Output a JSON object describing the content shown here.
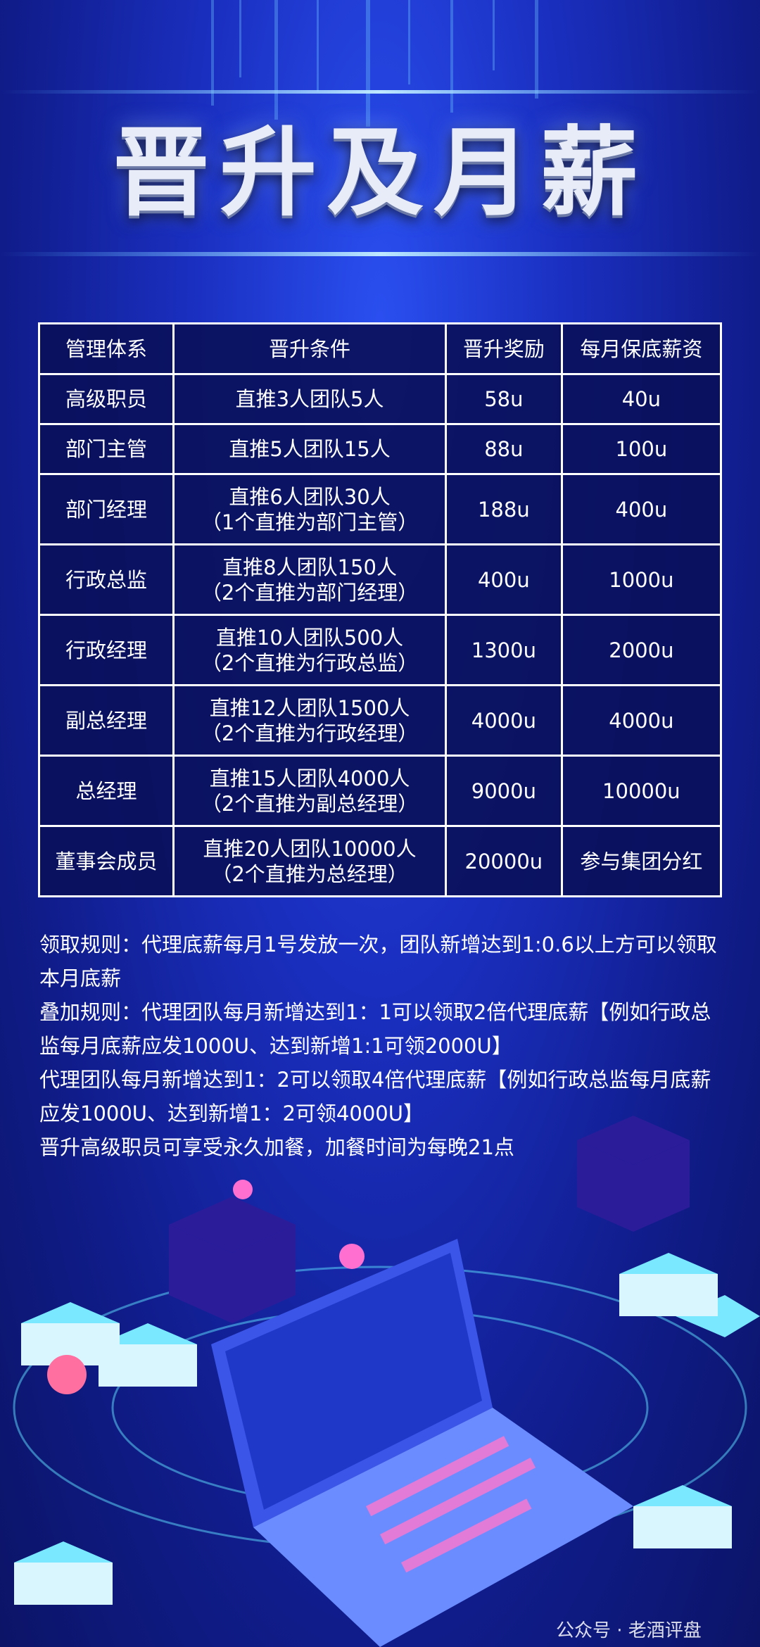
{
  "header": {
    "title": "晋升及月薪"
  },
  "table": {
    "header": [
      "管理体系",
      "晋升条件",
      "晋升奖励",
      "每月保底薪资"
    ],
    "rows": [
      [
        "高级职员",
        "直推3人团队5人",
        "58u",
        "40u"
      ],
      [
        "部门主管",
        "直推5人团队15人",
        "88u",
        "100u"
      ],
      [
        "部门经理",
        [
          "直推6人团队30人",
          "（1个直推为部门主管）"
        ],
        "188u",
        "400u"
      ],
      [
        "行政总监",
        [
          "直推8人团队150人",
          "（2个直推为部门经理）"
        ],
        "400u",
        "1000u"
      ],
      [
        "行政经理",
        [
          "直推10人团队500人",
          "（2个直推为行政总监）"
        ],
        "1300u",
        "2000u"
      ],
      [
        "副总经理",
        [
          "直推12人团队1500人",
          "（2个直推为行政经理）"
        ],
        "4000u",
        "4000u"
      ],
      [
        "总经理",
        [
          "直推15人团队4000人",
          "（2个直推为副总经理）"
        ],
        "9000u",
        "10000u"
      ],
      [
        "董事会成员",
        [
          "直推20人团队10000人",
          "（2个直推为总经理）"
        ],
        "20000u",
        "参与集团分红"
      ]
    ]
  },
  "rules": [
    "领取规则：代理底薪每月1号发放一次，团队新增达到1:0.6以上方可以领取本月底薪",
    "叠加规则：代理团队每月新增达到1：1可以领取2倍代理底薪【例如行政总监每月底薪应发1000U、达到新增1:1可领2000U】",
    "代理团队每月新增达到1：2可以领取4倍代理底薪【例如行政总监每月底薪应发1000U、达到新增1：2可领4000U】",
    "晋升高级职员可享受永久加餐，加餐时间为每晚21点"
  ],
  "watermark": "公众号 · 老酒评盘"
}
